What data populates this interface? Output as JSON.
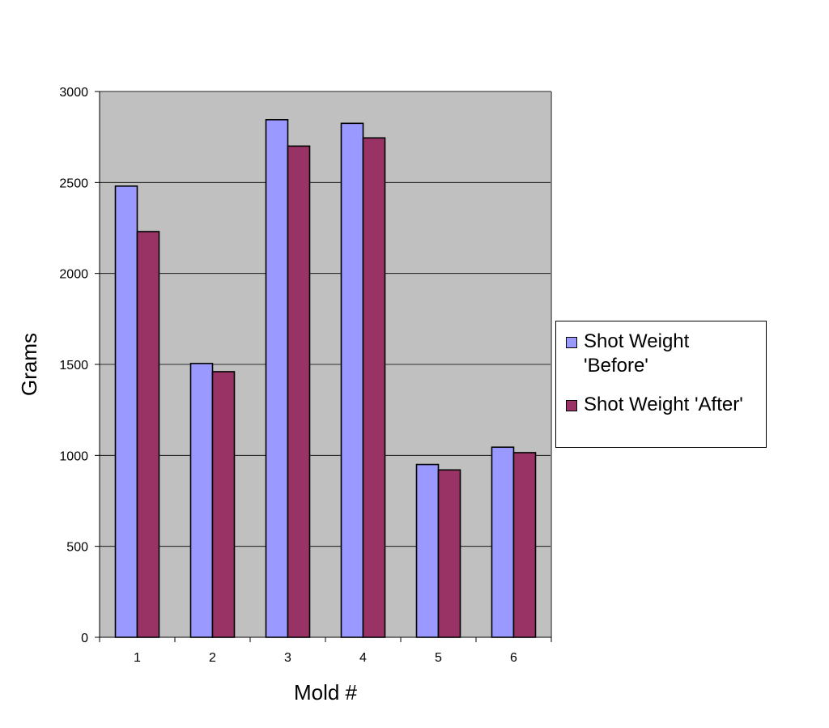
{
  "chart_data": {
    "type": "bar",
    "title": "",
    "xlabel": "Mold #",
    "ylabel": "Grams",
    "categories": [
      "1",
      "2",
      "3",
      "4",
      "5",
      "6"
    ],
    "series": [
      {
        "name": "Shot Weight 'Before'",
        "color": "#9999ff",
        "values": [
          2480,
          1505,
          2845,
          2825,
          950,
          1045
        ]
      },
      {
        "name": "Shot Weight 'After'",
        "color": "#993366",
        "values": [
          2230,
          1460,
          2700,
          2745,
          920,
          1015
        ]
      }
    ],
    "yticks": [
      0,
      500,
      1000,
      1500,
      2000,
      2500,
      3000
    ],
    "ylim": [
      0,
      3000
    ],
    "grid": true,
    "plot_background": "#c0c0c0",
    "legend_position": "right"
  }
}
